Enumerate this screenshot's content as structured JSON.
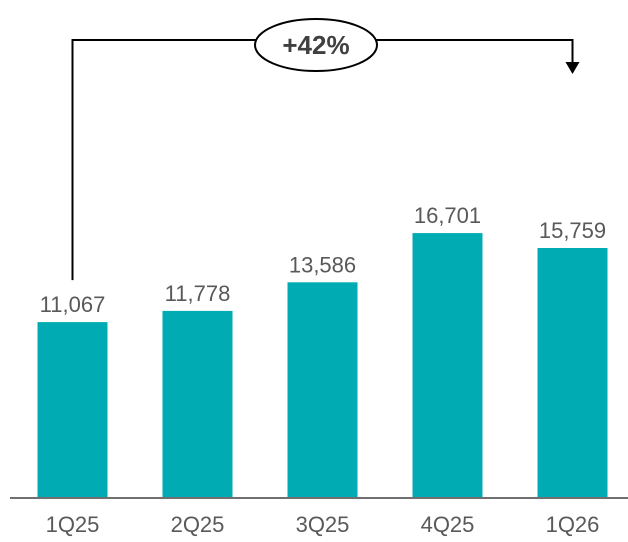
{
  "chart_data": {
    "type": "bar",
    "categories": [
      "1Q25",
      "2Q25",
      "3Q25",
      "4Q25",
      "1Q26"
    ],
    "values": [
      11067,
      11778,
      13586,
      16701,
      15759
    ],
    "value_labels": [
      "11,067",
      "11,778",
      "13,586",
      "16,701",
      "15,759"
    ],
    "ylim": [
      0,
      20000
    ],
    "grid": false,
    "annotation": {
      "text": "+42%",
      "from": "1Q25",
      "to": "1Q26"
    }
  },
  "colors": {
    "bar": "#00ABB3",
    "axis": "#404040",
    "text": "#595959"
  }
}
